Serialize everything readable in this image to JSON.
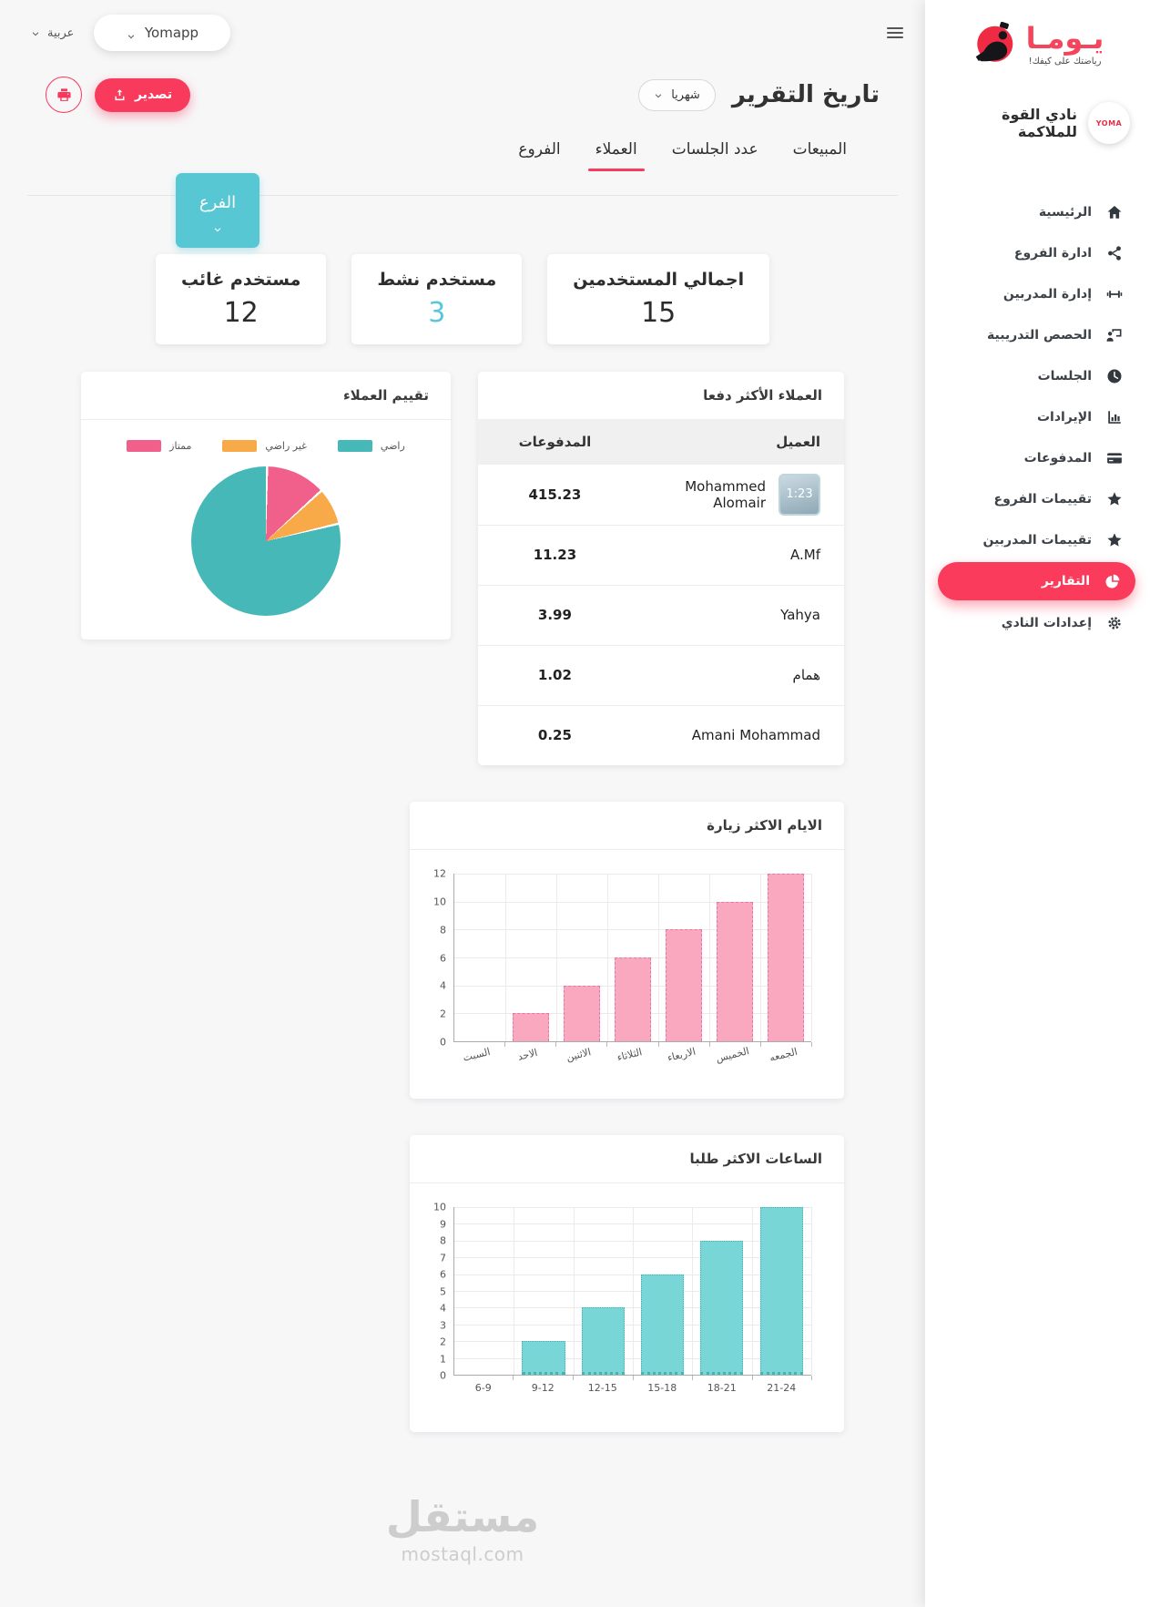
{
  "topbar": {
    "language": "عربية",
    "app_selector": "Yomapp"
  },
  "header": {
    "title": "تاريخ التقرير",
    "period_selector": "شهريا",
    "export_label": "تصدير"
  },
  "tabs": [
    {
      "label": "المبيعات"
    },
    {
      "label": "عدد الجلسات"
    },
    {
      "label": "العملاء",
      "active": true
    },
    {
      "label": "الفروع"
    }
  ],
  "branch_button": "الفرع",
  "stats": [
    {
      "label": "اجمالي المستخدمين",
      "value": "15",
      "color": "#2b2b2b"
    },
    {
      "label": "مستخدم نشط",
      "value": "3",
      "color": "#56c8d8"
    },
    {
      "label": "مستخدم غائب",
      "value": "12",
      "color": "#2b2b2b"
    }
  ],
  "top_clients": {
    "title": "العملاء الأكثر دفعا",
    "columns": {
      "client": "العميل",
      "payments": "المدفوعات"
    },
    "rows": [
      {
        "client": "Mohammed Alomair",
        "payments": "415.23",
        "has_avatar": true,
        "avatar_text": "1:23"
      },
      {
        "client": "A.Mf",
        "payments": "11.23"
      },
      {
        "client": "Yahya",
        "payments": "3.99"
      },
      {
        "client": "همام",
        "payments": "1.02"
      },
      {
        "client": "Amani Mohammad",
        "payments": "0.25"
      }
    ]
  },
  "chart_data": [
    {
      "type": "pie",
      "title": "تقييم العملاء",
      "legend_position": "top",
      "slices": [
        {
          "label": "ممتاز",
          "value": 13,
          "color": "#f0608b"
        },
        {
          "label": "غير راضي",
          "value": 8,
          "color": "#f8a948"
        },
        {
          "label": "راضي",
          "value": 79,
          "color": "#47b8b8"
        }
      ]
    },
    {
      "type": "bar",
      "title": "الايام الاكثر زيارة",
      "categories": [
        "السبت",
        "الاحد",
        "الاثنين",
        "الثلاثاء",
        "الاربعاء",
        "الخميس",
        "الجمعه"
      ],
      "values": [
        0,
        2,
        4,
        6,
        8,
        10,
        12
      ],
      "ylim": [
        0,
        12
      ],
      "ytick_step": 2,
      "bar_color": "#f9a8c0",
      "bar_border": "#f0739e",
      "bar_border_style": "dashed",
      "rotate_labels": true,
      "grid": true
    },
    {
      "type": "bar",
      "title": "الساعات الاكثر طلبا",
      "categories": [
        "6-9",
        "9-12",
        "12-15",
        "15-18",
        "18-21",
        "21-24"
      ],
      "values": [
        0,
        2,
        4,
        6,
        8,
        10
      ],
      "ylim": [
        0,
        10
      ],
      "ytick_step": 1,
      "bar_color": "#79d6d6",
      "bar_border": "#44b3b8",
      "bar_border_style": "dotted",
      "rotate_labels": false,
      "grid": true
    }
  ],
  "sidebar": {
    "logo_title": "يـومـا",
    "logo_tagline": "رياضتك على كيفك!",
    "club_name": "نادي القوة للملاكمة",
    "avatar_text": "YOMA",
    "nav": [
      {
        "label": "الرئيسية",
        "icon": "home"
      },
      {
        "label": "ادارة الفروع",
        "icon": "share-nodes"
      },
      {
        "label": "إدارة المدربين",
        "icon": "dumbbell"
      },
      {
        "label": "الحصص التدريبية",
        "icon": "chalkboard-user"
      },
      {
        "label": "الجلسات",
        "icon": "clock"
      },
      {
        "label": "الإيرادات",
        "icon": "chart-column"
      },
      {
        "label": "المدفوعات",
        "icon": "credit-card"
      },
      {
        "label": "تقييمات الفروع",
        "icon": "star"
      },
      {
        "label": "تقييمات المدربين",
        "icon": "star"
      },
      {
        "label": "التقارير",
        "icon": "chart-pie",
        "active": true
      },
      {
        "label": "إعدادات النادي",
        "icon": "gear"
      }
    ]
  },
  "watermark": {
    "title": "مستقل",
    "subtitle": "mostaql.com"
  },
  "colors": {
    "accent": "#f83a5c",
    "teal": "#57c7d4",
    "active_nav": "#fb3b5c"
  }
}
